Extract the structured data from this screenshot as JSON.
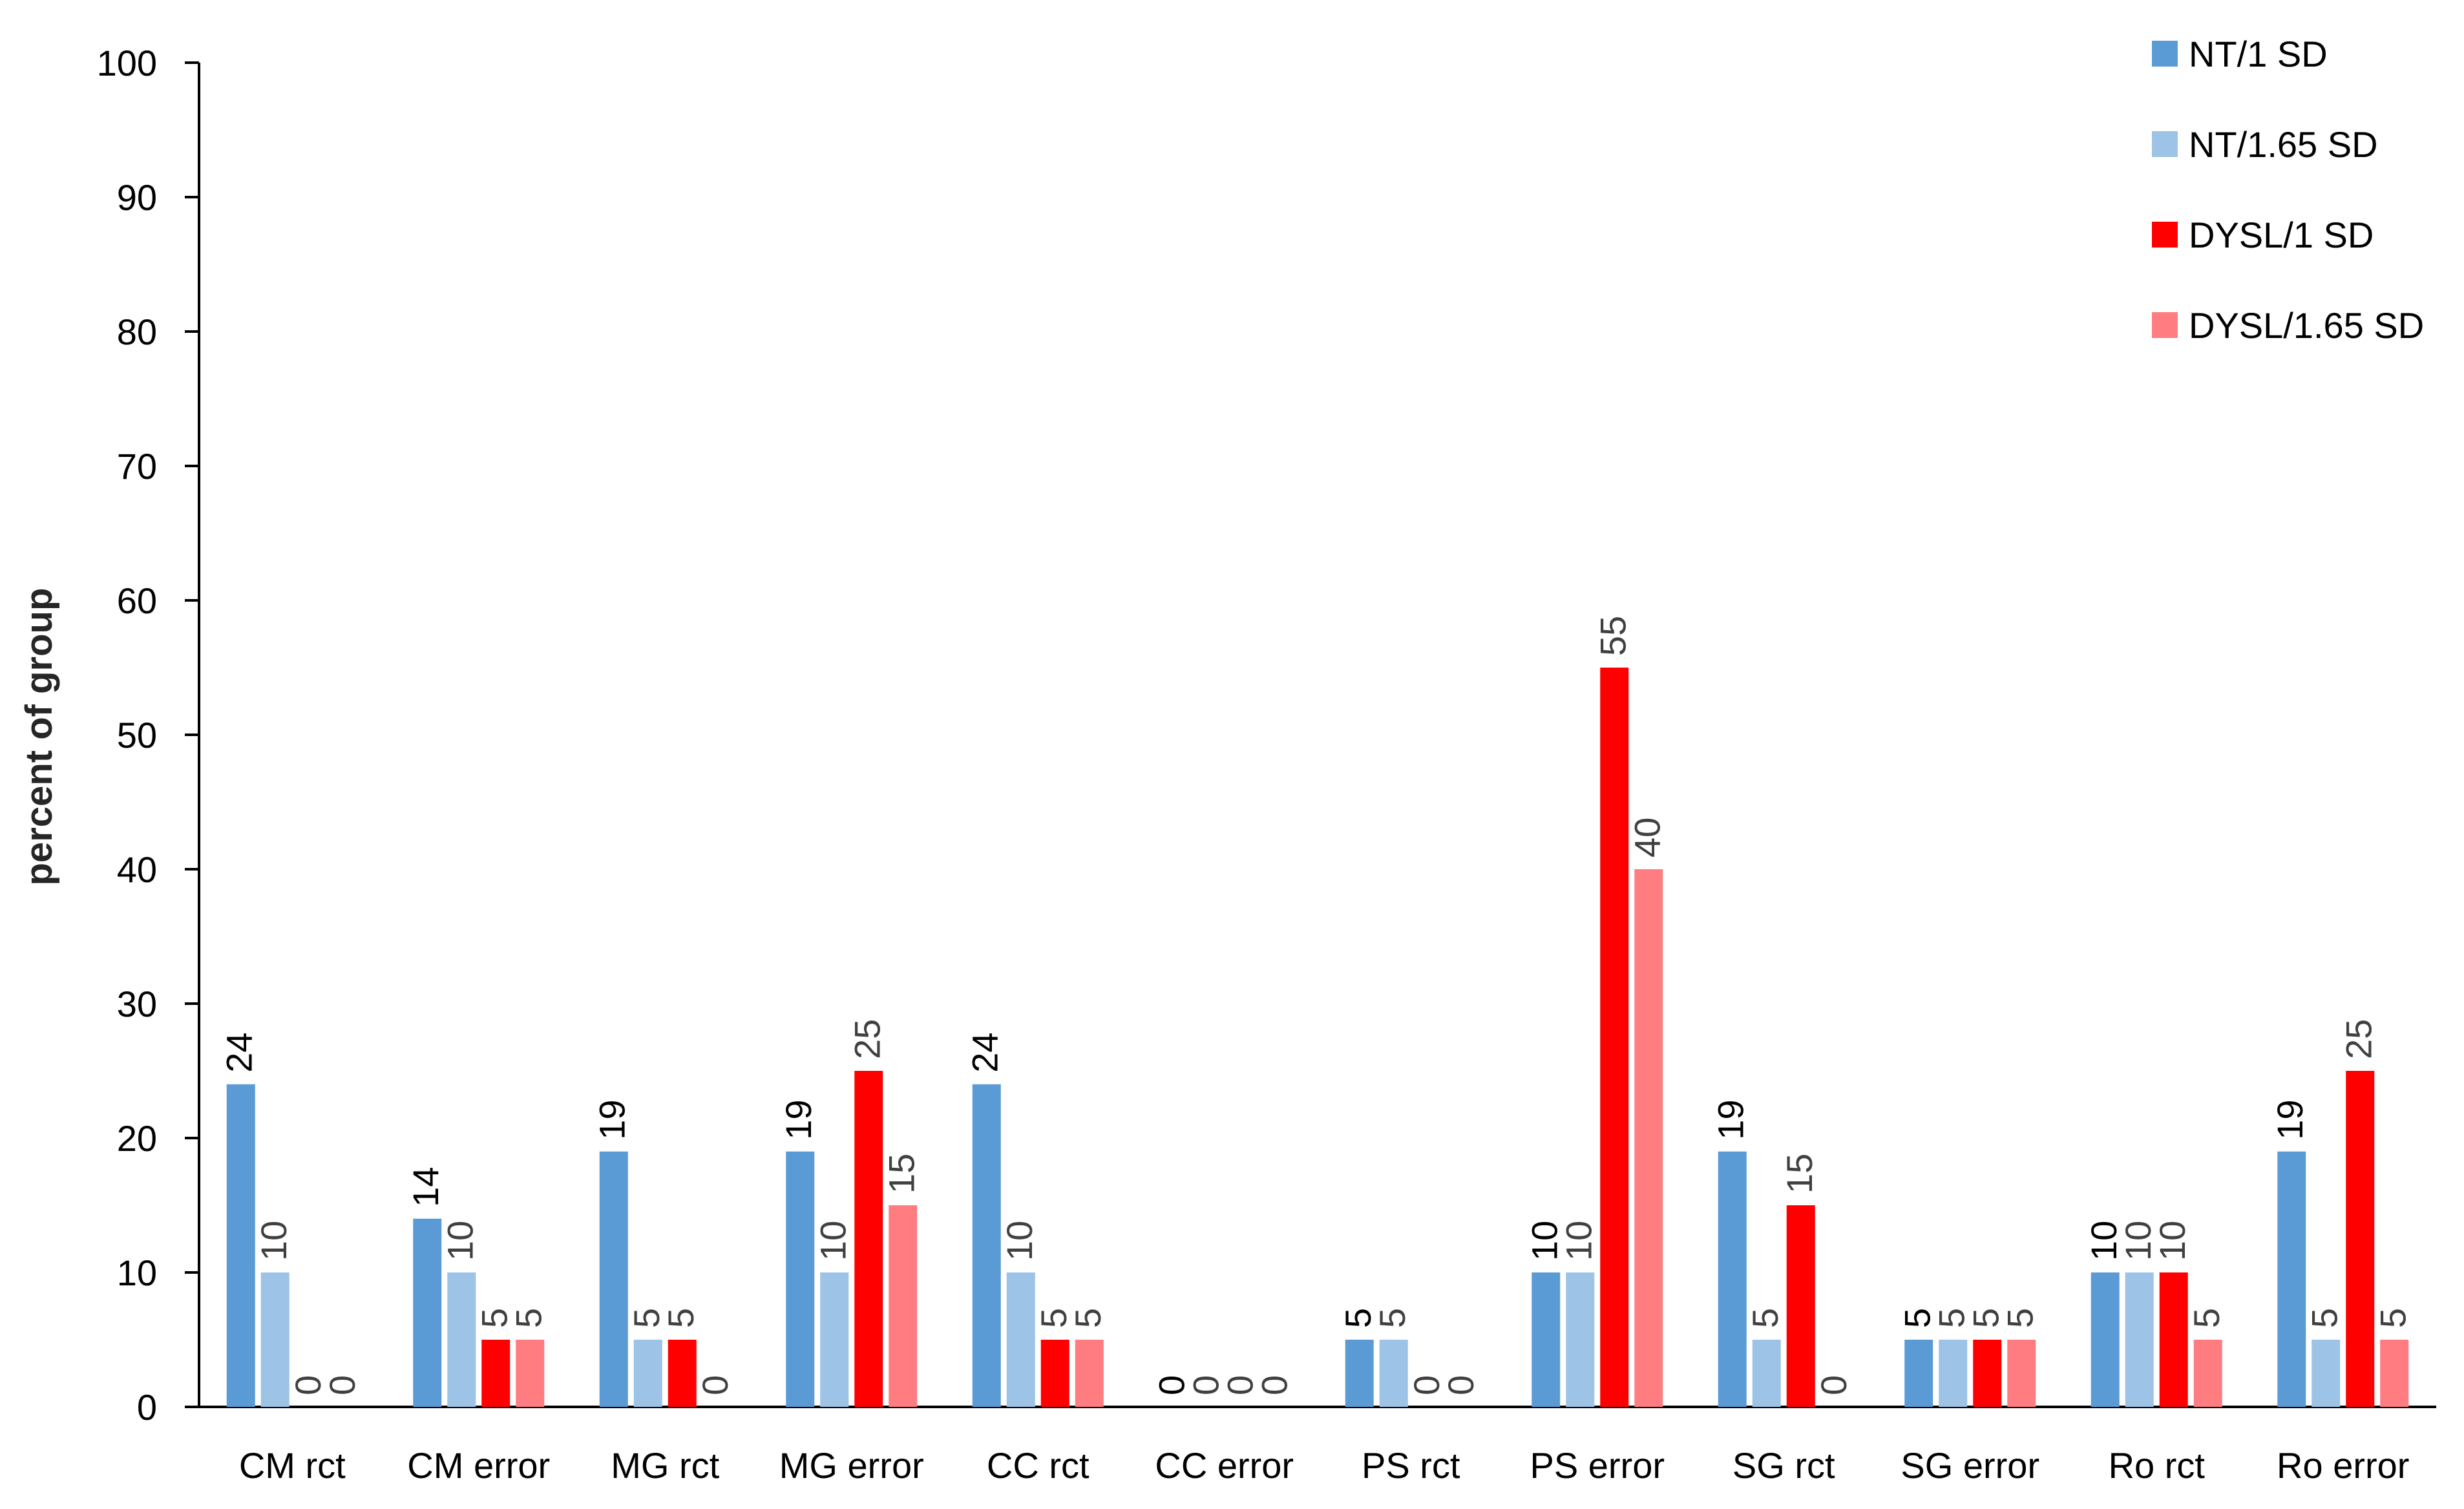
{
  "chart_data": {
    "type": "bar",
    "title": "",
    "xlabel": "",
    "ylabel": "percent of group",
    "ylim": [
      0,
      100
    ],
    "yticks": [
      "0",
      "10",
      "20",
      "30",
      "40",
      "50",
      "60",
      "70",
      "80",
      "90",
      "100"
    ],
    "grid": false,
    "legend_position": "top-right",
    "categories": [
      "CM rct",
      "CM error",
      "MG rct",
      "MG error",
      "CC rct",
      "CC error",
      "PS rct",
      "PS error",
      "SG rct",
      "SG error",
      "Ro rct",
      "Ro error"
    ],
    "series": [
      {
        "name": "NT/1 SD",
        "color": "#5B9BD5",
        "values": [
          24,
          14,
          19,
          19,
          24,
          0,
          5,
          10,
          19,
          5,
          10,
          19
        ],
        "labels": [
          "24",
          "14",
          "19",
          "19",
          "24",
          "0",
          "5",
          "10",
          "19",
          "5",
          "10",
          "19"
        ]
      },
      {
        "name": "NT/1.65 SD",
        "color": "#9DC3E6",
        "values": [
          10,
          10,
          5,
          10,
          10,
          0,
          5,
          10,
          5,
          5,
          10,
          5
        ],
        "labels": [
          "10",
          "10",
          "5",
          "10",
          "10",
          "0",
          "5",
          "10",
          "5",
          "5",
          "10",
          "5"
        ]
      },
      {
        "name": "DYSL/1 SD",
        "color": "#FF0000",
        "values": [
          0,
          5,
          5,
          25,
          5,
          0,
          0,
          55,
          15,
          5,
          10,
          25
        ],
        "labels": [
          "0",
          "5",
          "5",
          "25",
          "5",
          "0",
          "0",
          "55",
          "15",
          "5",
          "10",
          "25"
        ]
      },
      {
        "name": "DYSL/1.65 SD",
        "color": "#FF7C80",
        "values": [
          0,
          5,
          0,
          15,
          5,
          0,
          0,
          40,
          0,
          5,
          5,
          5
        ],
        "labels": [
          "0",
          "5",
          "0",
          "15",
          "5",
          "0",
          "0",
          "40",
          "0",
          "5",
          "5",
          "5"
        ]
      }
    ]
  }
}
